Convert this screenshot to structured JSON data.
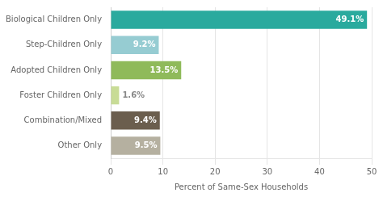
{
  "chart_data": {
    "type": "bar",
    "orientation": "horizontal",
    "categories": [
      "Other Only",
      "Combination/Mixed",
      "Foster Children Only",
      "Adopted Children Only",
      "Step-Children Only",
      "Biological Children Only"
    ],
    "values": [
      9.5,
      9.4,
      1.6,
      13.5,
      9.2,
      49.1
    ],
    "colors": [
      "#b5b0a0",
      "#6b5e4e",
      "#c8dc96",
      "#8fba5a",
      "#96ccd2",
      "#2aaa9e"
    ],
    "data_labels": true,
    "value_labels": [
      "9.5%",
      "9.4%",
      "1.6%",
      "13.5%",
      "9.2%",
      "49.1%"
    ],
    "xlabel": "Percent of Same-Sex Households",
    "xlim": [
      0,
      50
    ],
    "xticks": [
      0,
      10,
      20,
      30,
      40,
      50
    ],
    "grid": true
  }
}
